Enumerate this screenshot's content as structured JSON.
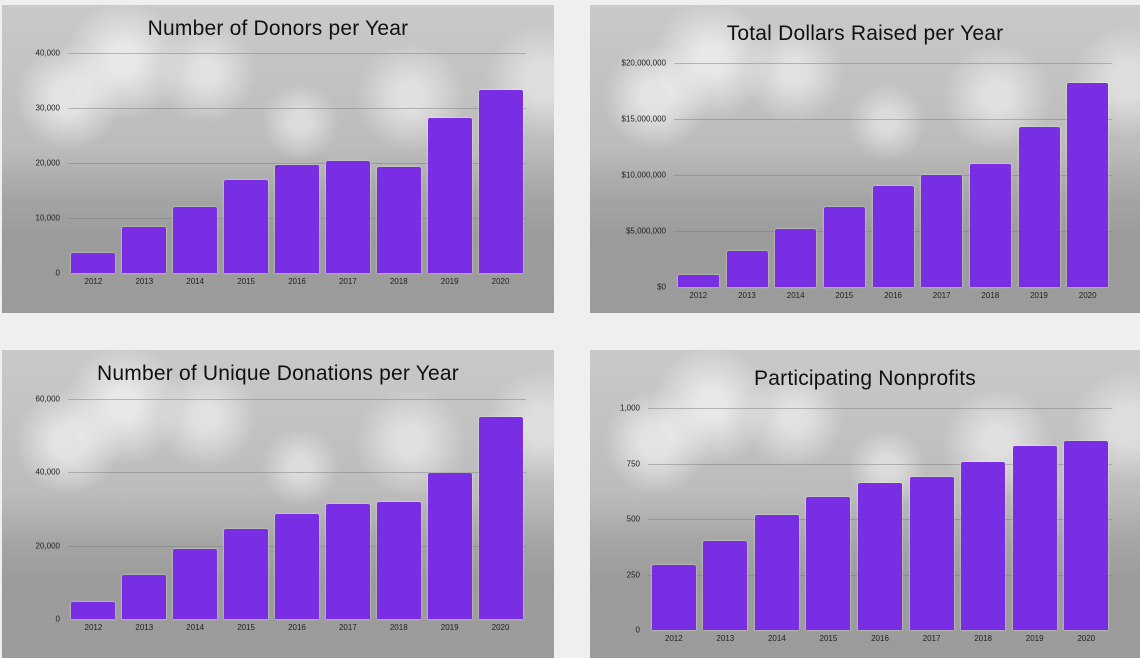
{
  "page": {
    "background": "#efefef",
    "bar_color": "#7a2ee3"
  },
  "chart_data": [
    {
      "type": "bar",
      "title": "Number of Donors per Year",
      "xlabel": "",
      "ylabel": "",
      "categories": [
        "2012",
        "2013",
        "2014",
        "2015",
        "2016",
        "2017",
        "2018",
        "2019",
        "2020"
      ],
      "values": [
        3600,
        8400,
        12000,
        17000,
        19600,
        20300,
        19300,
        28100,
        33200
      ],
      "yticks": [
        "0",
        "10,000",
        "20,000",
        "30,000",
        "40,000"
      ],
      "ylim": [
        0,
        40000
      ],
      "grid": true,
      "legend": null
    },
    {
      "type": "bar",
      "title": "Total Dollars Raised per Year",
      "xlabel": "",
      "ylabel": "",
      "categories": [
        "2012",
        "2013",
        "2014",
        "2015",
        "2016",
        "2017",
        "2018",
        "2019",
        "2020"
      ],
      "values": [
        1100000,
        3200000,
        5200000,
        7100000,
        9000000,
        10000000,
        11000000,
        14300000,
        18200000
      ],
      "yticks": [
        "$0",
        "$5,000,000",
        "$10,000,000",
        "$15,000,000",
        "$20,000,000"
      ],
      "ylim": [
        0,
        20000000
      ],
      "grid": true,
      "legend": null
    },
    {
      "type": "bar",
      "title": "Number of Unique Donations per Year",
      "xlabel": "",
      "ylabel": "",
      "categories": [
        "2012",
        "2013",
        "2014",
        "2015",
        "2016",
        "2017",
        "2018",
        "2019",
        "2020"
      ],
      "values": [
        4700,
        12000,
        19100,
        24500,
        28600,
        31500,
        32000,
        39700,
        55100
      ],
      "yticks": [
        "0",
        "20,000",
        "40,000",
        "60,000"
      ],
      "ylim": [
        0,
        60000
      ],
      "grid": true,
      "legend": null
    },
    {
      "type": "bar",
      "title": "Participating Nonprofits",
      "xlabel": "",
      "ylabel": "",
      "categories": [
        "2012",
        "2013",
        "2014",
        "2015",
        "2016",
        "2017",
        "2018",
        "2019",
        "2020"
      ],
      "values": [
        295,
        403,
        516,
        600,
        661,
        691,
        756,
        831,
        853
      ],
      "yticks": [
        "0",
        "250",
        "500",
        "750",
        "1,000"
      ],
      "ylim": [
        0,
        1000
      ],
      "grid": true,
      "legend": null
    }
  ]
}
